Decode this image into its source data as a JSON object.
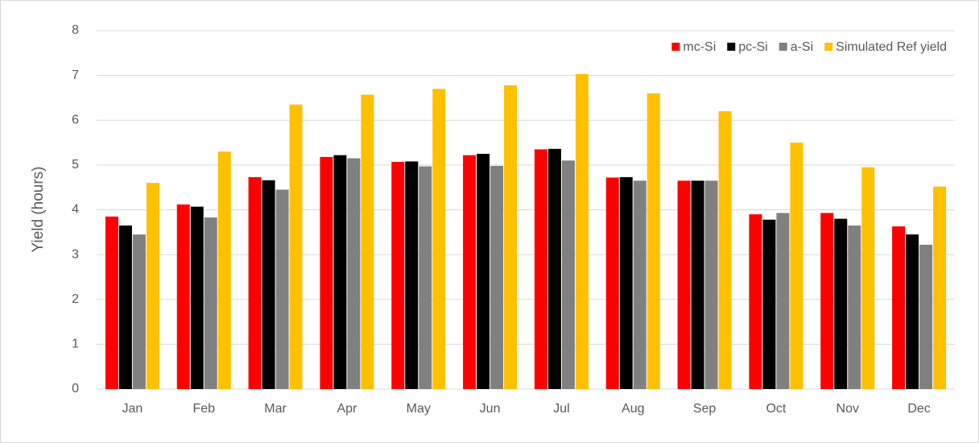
{
  "chart_data": {
    "type": "bar",
    "y_label": "Yield (hours)",
    "categories": [
      "Jan",
      "Feb",
      "Mar",
      "Apr",
      "May",
      "Jun",
      "Jul",
      "Aug",
      "Sep",
      "Oct",
      "Nov",
      "Dec"
    ],
    "series": [
      {
        "name": "mc-Si",
        "color": "#ff0000",
        "values": [
          3.85,
          4.12,
          4.73,
          5.18,
          5.07,
          5.22,
          5.35,
          4.72,
          4.65,
          3.9,
          3.93,
          3.63
        ]
      },
      {
        "name": "pc-Si",
        "color": "#000000",
        "values": [
          3.65,
          4.07,
          4.66,
          5.22,
          5.08,
          5.25,
          5.36,
          4.73,
          4.65,
          3.78,
          3.8,
          3.45
        ]
      },
      {
        "name": "a-Si",
        "color": "#808080",
        "values": [
          3.45,
          3.83,
          4.45,
          5.15,
          4.97,
          4.98,
          5.1,
          4.65,
          4.65,
          3.93,
          3.65,
          3.22
        ]
      },
      {
        "name": "Simulated Ref yield",
        "color": "#ffc000",
        "values": [
          4.6,
          5.3,
          6.35,
          6.57,
          6.7,
          6.78,
          7.03,
          6.6,
          6.2,
          5.5,
          4.95,
          4.52
        ]
      }
    ],
    "ylim": [
      0,
      8
    ],
    "yticks": [
      0,
      1,
      2,
      3,
      4,
      5,
      6,
      7,
      8
    ],
    "grid": true,
    "legend": "top-right"
  }
}
